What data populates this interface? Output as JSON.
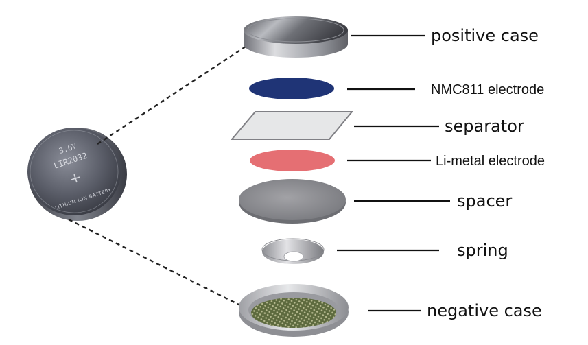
{
  "cell": {
    "engraving": {
      "voltage": "3.6V",
      "model": "LIR2032",
      "plus": "+",
      "chemistry": "LITHIUM ION BATTERY"
    }
  },
  "components": [
    {
      "id": "positive-case",
      "label": "positive case"
    },
    {
      "id": "nmc811-electrode",
      "label": "NMC811 electrode",
      "color": "#1f3476"
    },
    {
      "id": "separator",
      "label": "separator",
      "color": "#e6e7e8"
    },
    {
      "id": "li-metal-electrode",
      "label": "Li-metal electrode",
      "color": "#e56f73"
    },
    {
      "id": "spacer",
      "label": "spacer"
    },
    {
      "id": "spring",
      "label": "spring"
    },
    {
      "id": "negative-case",
      "label": "negative case"
    }
  ]
}
